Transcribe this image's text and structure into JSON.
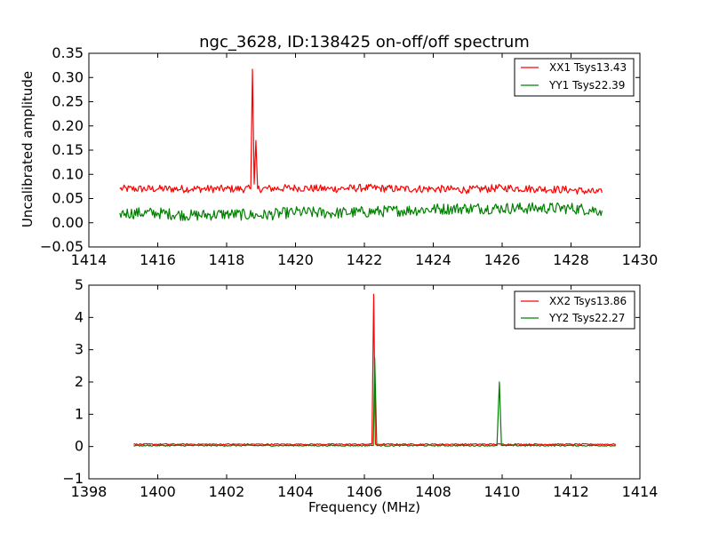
{
  "chart_data": [
    {
      "type": "line",
      "title": "ngc_3628, ID:138425 on-off/off spectrum",
      "xlabel": "",
      "ylabel": "Uncalibrated amplitude",
      "xlim": [
        1414,
        1430
      ],
      "ylim": [
        -0.05,
        0.35
      ],
      "xticks": [
        1414,
        1416,
        1418,
        1420,
        1422,
        1424,
        1426,
        1428,
        1430
      ],
      "xtick_labels": [
        "1414",
        "1416",
        "1418",
        "1420",
        "1422",
        "1424",
        "1426",
        "1428",
        "1430"
      ],
      "yticks": [
        -0.05,
        0.0,
        0.05,
        0.1,
        0.15,
        0.2,
        0.25,
        0.3,
        0.35
      ],
      "ytick_labels": [
        "−0.05",
        "0.00",
        "0.05",
        "0.10",
        "0.15",
        "0.20",
        "0.25",
        "0.30",
        "0.35"
      ],
      "legend_position": "top-right",
      "series": [
        {
          "name": "XX1 Tsys13.43",
          "color": "#ff0000",
          "x": [
            1414.9,
            1416.0,
            1417.0,
            1418.0,
            1418.7,
            1418.75,
            1418.8,
            1418.85,
            1418.9,
            1420.0,
            1421.0,
            1422.0,
            1423.0,
            1424.0,
            1425.0,
            1426.0,
            1427.0,
            1428.0,
            1428.9
          ],
          "y": [
            0.07,
            0.07,
            0.07,
            0.07,
            0.07,
            0.317,
            0.08,
            0.17,
            0.07,
            0.072,
            0.07,
            0.072,
            0.07,
            0.07,
            0.068,
            0.072,
            0.07,
            0.068,
            0.062
          ],
          "noise": 0.008
        },
        {
          "name": "YY1 Tsys22.39",
          "color": "#008000",
          "x": [
            1414.9,
            1416.0,
            1417.0,
            1418.0,
            1419.0,
            1420.0,
            1421.0,
            1422.0,
            1423.0,
            1424.0,
            1425.0,
            1426.0,
            1427.0,
            1428.0,
            1428.9
          ],
          "y": [
            0.02,
            0.02,
            0.015,
            0.018,
            0.015,
            0.022,
            0.02,
            0.022,
            0.025,
            0.028,
            0.03,
            0.03,
            0.03,
            0.03,
            0.025
          ],
          "noise": 0.012
        }
      ]
    },
    {
      "type": "line",
      "title": "",
      "xlabel": "Frequency (MHz)",
      "ylabel": "",
      "xlim": [
        1398,
        1414
      ],
      "ylim": [
        -1,
        5
      ],
      "xticks": [
        1398,
        1400,
        1402,
        1404,
        1406,
        1408,
        1410,
        1412,
        1414
      ],
      "xtick_labels": [
        "1398",
        "1400",
        "1402",
        "1404",
        "1406",
        "1408",
        "1410",
        "1412",
        "1414"
      ],
      "yticks": [
        -1,
        0,
        1,
        2,
        3,
        4,
        5
      ],
      "ytick_labels": [
        "−1",
        "0",
        "1",
        "2",
        "3",
        "4",
        "5"
      ],
      "legend_position": "top-right",
      "series": [
        {
          "name": "XX2 Tsys13.86",
          "color": "#ff0000",
          "x": [
            1399.3,
            1402.0,
            1404.0,
            1406.1,
            1406.22,
            1406.27,
            1406.32,
            1406.4,
            1408.0,
            1410.0,
            1412.0,
            1413.3
          ],
          "y": [
            0.07,
            0.07,
            0.07,
            0.07,
            0.07,
            4.72,
            0.07,
            0.07,
            0.07,
            0.07,
            0.07,
            0.07
          ],
          "noise": 0.02
        },
        {
          "name": "YY2 Tsys22.27",
          "color": "#008000",
          "x": [
            1399.3,
            1402.0,
            1404.0,
            1406.2,
            1406.26,
            1406.3,
            1406.36,
            1406.45,
            1409.85,
            1409.92,
            1409.98,
            1410.05,
            1412.0,
            1413.3
          ],
          "y": [
            0.03,
            0.03,
            0.03,
            0.03,
            0.03,
            2.75,
            0.03,
            0.03,
            0.03,
            2.0,
            0.03,
            0.03,
            0.03,
            0.03
          ],
          "noise": 0.02
        }
      ]
    }
  ]
}
